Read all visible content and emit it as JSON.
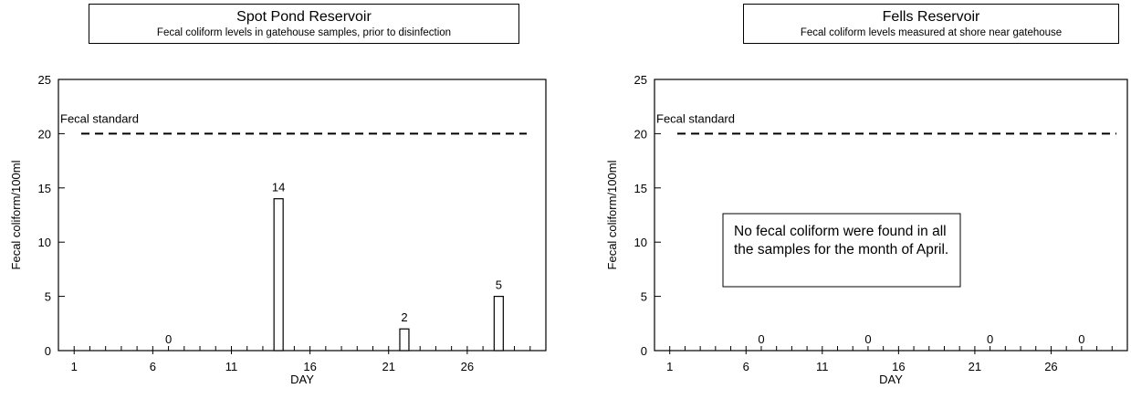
{
  "chart_data": [
    {
      "type": "bar",
      "title": "Spot Pond Reservoir",
      "subtitle": "Fecal coliform levels in gatehouse samples, prior to disinfection",
      "xlabel": "DAY",
      "ylabel": "Fecal coliform/100ml",
      "xlim": [
        0,
        31
      ],
      "ylim": [
        0,
        25
      ],
      "xticks": [
        1,
        6,
        11,
        16,
        21,
        26
      ],
      "yticks": [
        0,
        5,
        10,
        15,
        20,
        25
      ],
      "reference_line": {
        "y": 20,
        "label": "Fecal standard",
        "style": "dashed"
      },
      "x": [
        7,
        14,
        22,
        28
      ],
      "values": [
        0,
        14,
        2,
        5
      ],
      "data_labels": [
        "0",
        "14",
        "2",
        "5"
      ],
      "note": ""
    },
    {
      "type": "bar",
      "title": "Fells Reservoir",
      "subtitle": "Fecal coliform levels measured at shore near gatehouse",
      "xlabel": "DAY",
      "ylabel": "Fecal coliform/100ml",
      "xlim": [
        0,
        31
      ],
      "ylim": [
        0,
        25
      ],
      "xticks": [
        1,
        6,
        11,
        16,
        21,
        26
      ],
      "yticks": [
        0,
        5,
        10,
        15,
        20,
        25
      ],
      "reference_line": {
        "y": 20,
        "label": "Fecal standard",
        "style": "dashed"
      },
      "x": [
        7,
        14,
        22,
        28
      ],
      "values": [
        0,
        0,
        0,
        0
      ],
      "data_labels": [
        "0",
        "0",
        "0",
        "0"
      ],
      "note": "No fecal coliform were found in all the samples for the month of April."
    }
  ]
}
